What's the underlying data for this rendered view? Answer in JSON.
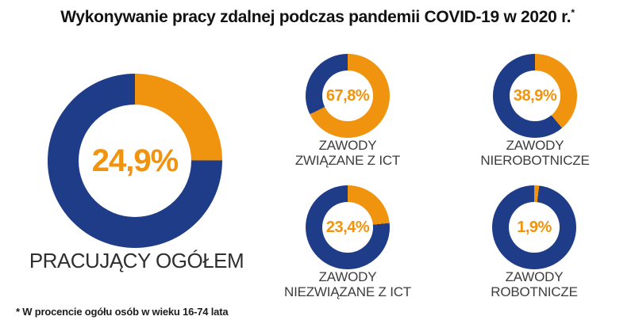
{
  "title": {
    "text": "Wykonywanie pracy zdalnej podczas pandemii COVID-19 w 2020 r.",
    "superscript": "*"
  },
  "footnote": "* W procencie ogółu osób w wieku 16-74 lata",
  "chart_data": {
    "type": "pie",
    "variant": "donut",
    "title": "Wykonywanie pracy zdalnej podczas pandemii COVID-19 w 2020 r.*",
    "footnote": "* W procencie ogółu osób w wieku 16-74 lata",
    "unit": "%",
    "start_angle_deg": 0,
    "direction": "clockwise",
    "colors": {
      "share": "#F0930F",
      "remainder": "#1E3C87"
    },
    "charts": [
      {
        "label": "PRACUJĄCY OGÓŁEM",
        "value": 24.9,
        "value_label": "24,9%"
      },
      {
        "label_lines": [
          "ZAWODY",
          "ZWIĄZANE Z ICT"
        ],
        "value": 67.8,
        "value_label": "67,8%"
      },
      {
        "label_lines": [
          "ZAWODY",
          "NIEROBOTNICZE"
        ],
        "value": 38.9,
        "value_label": "38,9%"
      },
      {
        "label_lines": [
          "ZAWODY",
          "NIEZWIĄZANE Z ICT"
        ],
        "value": 23.4,
        "value_label": "23,4%"
      },
      {
        "label_lines": [
          "ZAWODY",
          "ROBOTNICZE"
        ],
        "value": 1.9,
        "value_label": "1,9%"
      }
    ]
  }
}
